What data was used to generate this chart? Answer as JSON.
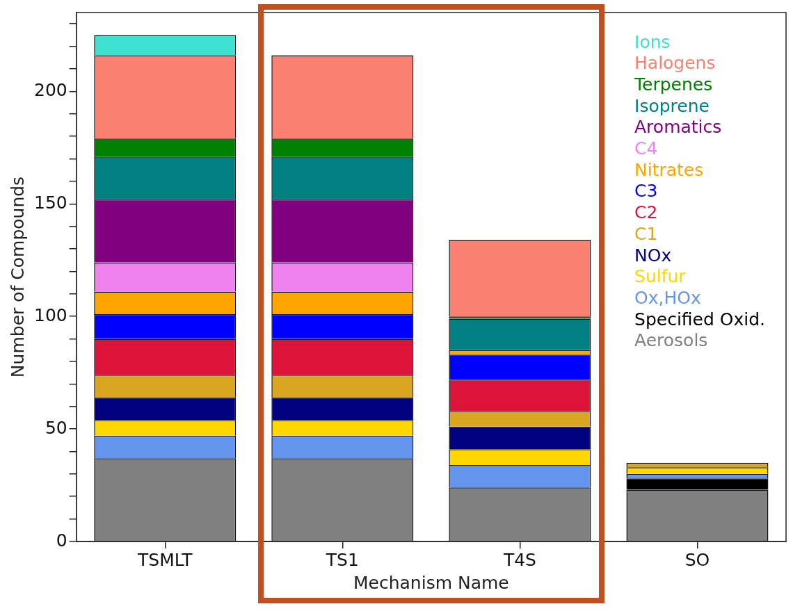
{
  "chart_data": {
    "type": "bar",
    "xlabel": "Mechanism Name",
    "ylabel": "Number of Compounds",
    "categories": [
      "TSMLT",
      "TS1",
      "T4S",
      "SO"
    ],
    "stacked": true,
    "legend": "top right",
    "ylim": [
      0,
      235
    ],
    "yticks": [
      0,
      {
        "value": 10,
        "label": null
      },
      {
        "value": 20,
        "label": null
      },
      {
        "value": 30,
        "label": null
      },
      {
        "value": 40,
        "label": null
      },
      50,
      {
        "value": 60,
        "label": null
      },
      {
        "value": 70,
        "label": null
      },
      {
        "value": 80,
        "label": null
      },
      {
        "value": 90,
        "label": null
      },
      100,
      {
        "value": 110,
        "label": null
      },
      {
        "value": 120,
        "label": null
      },
      {
        "value": 130,
        "label": null
      },
      {
        "value": 140,
        "label": null
      },
      150,
      {
        "value": 160,
        "label": null
      },
      {
        "value": 170,
        "label": null
      },
      {
        "value": 180,
        "label": null
      },
      {
        "value": 190,
        "label": null
      },
      200,
      {
        "value": 210,
        "label": null
      },
      {
        "value": 220,
        "label": null
      },
      {
        "value": 230,
        "label": null
      }
    ],
    "series": [
      {
        "name": "Aerosols",
        "color": "#808080",
        "values": [
          37,
          37,
          24,
          23
        ]
      },
      {
        "name": "Specified Oxid.",
        "color": "#000000",
        "values": [
          0,
          0,
          0,
          5
        ]
      },
      {
        "name": "Ox,HOx",
        "color": "#6495ed",
        "values": [
          10,
          10,
          10,
          2
        ]
      },
      {
        "name": "Sulfur",
        "color": "#ffd700",
        "values": [
          7,
          7,
          7,
          3
        ]
      },
      {
        "name": "NOx",
        "color": "#000080",
        "values": [
          10,
          10,
          10,
          0
        ]
      },
      {
        "name": "C1",
        "color": "#daa520",
        "values": [
          10,
          10,
          7,
          2
        ]
      },
      {
        "name": "C2",
        "color": "#dc143c",
        "values": [
          16,
          16,
          14,
          0
        ]
      },
      {
        "name": "C3",
        "color": "#0000ff",
        "values": [
          11,
          11,
          11,
          0
        ]
      },
      {
        "name": "Nitrates",
        "color": "#ffa500",
        "values": [
          10,
          10,
          2,
          0
        ]
      },
      {
        "name": "C4",
        "color": "#ee82ee",
        "values": [
          13,
          13,
          0,
          0
        ]
      },
      {
        "name": "Aromatics",
        "color": "#800080",
        "values": [
          28,
          28,
          0,
          0
        ]
      },
      {
        "name": "Isoprene",
        "color": "#008080",
        "values": [
          19,
          19,
          14,
          0
        ]
      },
      {
        "name": "Terpenes",
        "color": "#008000",
        "values": [
          8,
          8,
          1,
          0
        ]
      },
      {
        "name": "Halogens",
        "color": "#fa8072",
        "values": [
          37,
          37,
          34,
          0
        ]
      },
      {
        "name": "Ions",
        "color": "#40e0d0",
        "values": [
          9,
          0,
          0,
          0
        ]
      }
    ]
  }
}
